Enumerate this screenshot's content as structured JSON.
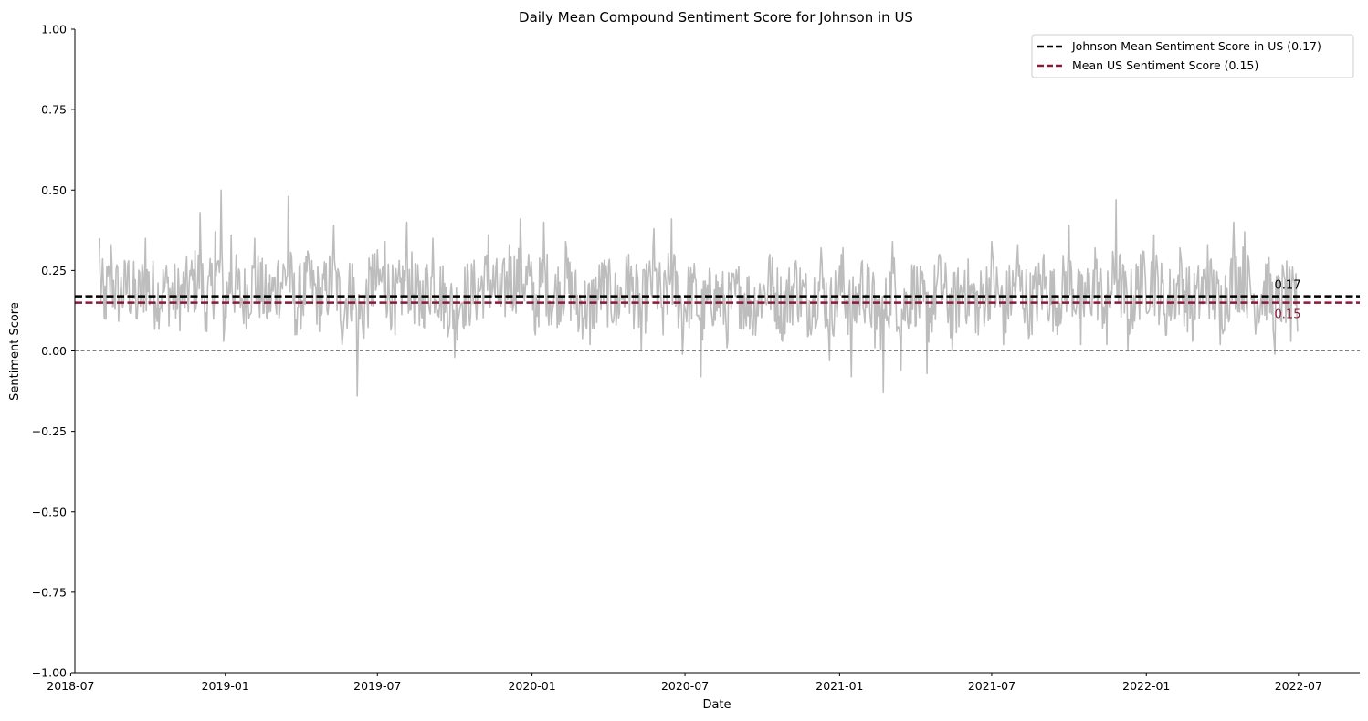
{
  "chart_data": {
    "type": "line",
    "title": "Daily Mean Compound Sentiment Score for Johnson in US",
    "xlabel": "Date",
    "ylabel": "Sentiment Score",
    "xlim": [
      "2018-07-06",
      "2022-09-12"
    ],
    "ylim": [
      -1.0,
      1.0
    ],
    "yticks": [
      -1.0,
      -0.75,
      -0.5,
      -0.25,
      0.0,
      0.25,
      0.5,
      0.75,
      1.0
    ],
    "ytick_labels": [
      "−1.00",
      "−0.75",
      "−0.50",
      "−0.25",
      "0.00",
      "0.25",
      "0.50",
      "0.75",
      "1.00"
    ],
    "xticks": [
      "2018-07-01",
      "2019-01-01",
      "2019-07-01",
      "2020-01-01",
      "2020-07-01",
      "2021-01-01",
      "2021-07-01",
      "2022-01-01",
      "2022-07-01"
    ],
    "xtick_labels": [
      "2018-07",
      "2019-01",
      "2019-07",
      "2020-01",
      "2020-07",
      "2021-01",
      "2021-07",
      "2022-01",
      "2022-07"
    ],
    "grid": false,
    "legend_position": "top-right",
    "series": [
      {
        "color": "#bdbdbd",
        "points": [
          [
            "2018-08-04",
            0.35
          ],
          [
            "2018-08-10",
            0.1
          ],
          [
            "2018-08-18",
            0.33
          ],
          [
            "2018-08-28",
            0.17
          ],
          [
            "2018-09-08",
            0.28
          ],
          [
            "2018-09-18",
            0.1
          ],
          [
            "2018-09-28",
            0.35
          ],
          [
            "2018-10-10",
            0.15
          ],
          [
            "2018-10-22",
            0.24
          ],
          [
            "2018-11-05",
            0.13
          ],
          [
            "2018-11-20",
            0.25
          ],
          [
            "2018-12-02",
            0.43
          ],
          [
            "2018-12-10",
            0.06
          ],
          [
            "2018-12-20",
            0.37
          ],
          [
            "2018-12-27",
            0.5
          ],
          [
            "2018-12-30",
            0.03
          ],
          [
            "2019-01-08",
            0.36
          ],
          [
            "2019-01-22",
            0.12
          ],
          [
            "2019-02-05",
            0.35
          ],
          [
            "2019-02-20",
            0.1
          ],
          [
            "2019-03-05",
            0.28
          ],
          [
            "2019-03-17",
            0.48
          ],
          [
            "2019-03-25",
            0.05
          ],
          [
            "2019-04-10",
            0.3
          ],
          [
            "2019-04-25",
            0.11
          ],
          [
            "2019-05-10",
            0.39
          ],
          [
            "2019-05-20",
            0.02
          ],
          [
            "2019-06-01",
            0.27
          ],
          [
            "2019-06-07",
            -0.14
          ],
          [
            "2019-06-15",
            0.04
          ],
          [
            "2019-06-25",
            0.3
          ],
          [
            "2019-07-10",
            0.34
          ],
          [
            "2019-07-22",
            0.05
          ],
          [
            "2019-08-05",
            0.4
          ],
          [
            "2019-08-20",
            0.08
          ],
          [
            "2019-09-05",
            0.35
          ],
          [
            "2019-09-20",
            0.12
          ],
          [
            "2019-10-01",
            -0.02
          ],
          [
            "2019-10-10",
            0.15
          ],
          [
            "2019-10-25",
            0.2
          ],
          [
            "2019-11-10",
            0.36
          ],
          [
            "2019-11-25",
            0.14
          ],
          [
            "2019-12-05",
            0.33
          ],
          [
            "2019-12-18",
            0.41
          ],
          [
            "2019-12-28",
            0.3
          ],
          [
            "2020-01-05",
            0.05
          ],
          [
            "2020-01-15",
            0.4
          ],
          [
            "2020-01-25",
            0.12
          ],
          [
            "2020-02-10",
            0.34
          ],
          [
            "2020-02-25",
            0.06
          ],
          [
            "2020-03-10",
            0.02
          ],
          [
            "2020-03-25",
            0.27
          ],
          [
            "2020-04-10",
            0.08
          ],
          [
            "2020-04-25",
            0.3
          ],
          [
            "2020-05-10",
            0.0
          ],
          [
            "2020-05-25",
            0.38
          ],
          [
            "2020-06-05",
            0.05
          ],
          [
            "2020-06-15",
            0.41
          ],
          [
            "2020-06-28",
            -0.01
          ],
          [
            "2020-07-10",
            0.24
          ],
          [
            "2020-07-20",
            -0.08
          ],
          [
            "2020-08-05",
            0.19
          ],
          [
            "2020-08-20",
            0.01
          ],
          [
            "2020-09-05",
            0.2
          ],
          [
            "2020-09-20",
            0.05
          ],
          [
            "2020-10-10",
            0.3
          ],
          [
            "2020-10-25",
            0.03
          ],
          [
            "2020-11-10",
            0.28
          ],
          [
            "2020-11-25",
            0.05
          ],
          [
            "2020-12-10",
            0.32
          ],
          [
            "2020-12-20",
            -0.03
          ],
          [
            "2021-01-05",
            0.32
          ],
          [
            "2021-01-15",
            -0.08
          ],
          [
            "2021-01-28",
            0.28
          ],
          [
            "2021-02-12",
            0.01
          ],
          [
            "2021-02-22",
            -0.13
          ],
          [
            "2021-03-05",
            0.34
          ],
          [
            "2021-03-15",
            -0.06
          ],
          [
            "2021-03-30",
            0.25
          ],
          [
            "2021-04-15",
            -0.07
          ],
          [
            "2021-04-30",
            0.3
          ],
          [
            "2021-05-15",
            0.0
          ],
          [
            "2021-05-30",
            0.25
          ],
          [
            "2021-06-15",
            0.05
          ],
          [
            "2021-07-01",
            0.34
          ],
          [
            "2021-07-15",
            0.02
          ],
          [
            "2021-08-01",
            0.33
          ],
          [
            "2021-08-15",
            0.05
          ],
          [
            "2021-09-01",
            0.3
          ],
          [
            "2021-09-15",
            0.08
          ],
          [
            "2021-10-01",
            0.39
          ],
          [
            "2021-10-15",
            0.02
          ],
          [
            "2021-11-01",
            0.32
          ],
          [
            "2021-11-15",
            0.02
          ],
          [
            "2021-11-26",
            0.47
          ],
          [
            "2021-12-10",
            0.0
          ],
          [
            "2021-12-25",
            0.3
          ],
          [
            "2022-01-10",
            0.36
          ],
          [
            "2022-01-25",
            0.05
          ],
          [
            "2022-02-10",
            0.32
          ],
          [
            "2022-02-25",
            0.03
          ],
          [
            "2022-03-15",
            0.33
          ],
          [
            "2022-03-30",
            0.02
          ],
          [
            "2022-04-15",
            0.4
          ],
          [
            "2022-04-28",
            0.37
          ],
          [
            "2022-05-10",
            0.1
          ],
          [
            "2022-05-25",
            0.27
          ],
          [
            "2022-06-03",
            -0.01
          ],
          [
            "2022-06-15",
            0.22
          ],
          [
            "2022-06-22",
            0.03
          ],
          [
            "2022-06-28",
            0.24
          ],
          [
            "2022-06-30",
            0.06
          ]
        ]
      }
    ],
    "hlines": [
      {
        "y": 0.17,
        "color": "#000000",
        "style": "dashed",
        "legend": "Johnson Mean Sentiment Score in US (0.17)",
        "annotation": "0.17"
      },
      {
        "y": 0.15,
        "color": "#8b1a3a",
        "style": "dashed",
        "legend": "Mean US Sentiment Score (0.15)",
        "annotation": "0.15"
      },
      {
        "y": 0.0,
        "color": "#808080",
        "style": "dashed-thin"
      }
    ]
  }
}
